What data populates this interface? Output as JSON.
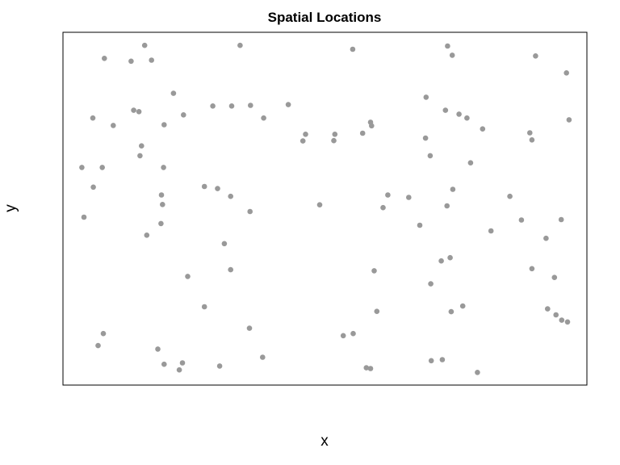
{
  "chart_data": {
    "type": "scatter",
    "title": "Spatial Locations",
    "xlabel": "x",
    "ylabel": "y",
    "xlim": [
      0,
      1
    ],
    "ylim": [
      0,
      1
    ],
    "grid": false,
    "axis_ticks_shown": false,
    "point_color": "#999999",
    "points": [
      [
        0.156,
        0.963
      ],
      [
        0.338,
        0.963
      ],
      [
        0.734,
        0.961
      ],
      [
        0.553,
        0.952
      ],
      [
        0.743,
        0.935
      ],
      [
        0.902,
        0.933
      ],
      [
        0.079,
        0.926
      ],
      [
        0.13,
        0.918
      ],
      [
        0.169,
        0.921
      ],
      [
        0.961,
        0.885
      ],
      [
        0.211,
        0.827
      ],
      [
        0.693,
        0.816
      ],
      [
        0.43,
        0.795
      ],
      [
        0.322,
        0.791
      ],
      [
        0.286,
        0.791
      ],
      [
        0.358,
        0.793
      ],
      [
        0.145,
        0.775
      ],
      [
        0.135,
        0.779
      ],
      [
        0.73,
        0.779
      ],
      [
        0.23,
        0.766
      ],
      [
        0.756,
        0.768
      ],
      [
        0.057,
        0.757
      ],
      [
        0.383,
        0.757
      ],
      [
        0.771,
        0.757
      ],
      [
        0.193,
        0.738
      ],
      [
        0.096,
        0.736
      ],
      [
        0.587,
        0.745
      ],
      [
        0.589,
        0.735
      ],
      [
        0.801,
        0.726
      ],
      [
        0.966,
        0.752
      ],
      [
        0.572,
        0.714
      ],
      [
        0.891,
        0.715
      ],
      [
        0.463,
        0.711
      ],
      [
        0.519,
        0.711
      ],
      [
        0.692,
        0.7
      ],
      [
        0.458,
        0.692
      ],
      [
        0.517,
        0.693
      ],
      [
        0.895,
        0.695
      ],
      [
        0.15,
        0.678
      ],
      [
        0.147,
        0.65
      ],
      [
        0.701,
        0.65
      ],
      [
        0.778,
        0.63
      ],
      [
        0.036,
        0.617
      ],
      [
        0.075,
        0.617
      ],
      [
        0.192,
        0.617
      ],
      [
        0.058,
        0.561
      ],
      [
        0.27,
        0.563
      ],
      [
        0.295,
        0.557
      ],
      [
        0.744,
        0.555
      ],
      [
        0.188,
        0.539
      ],
      [
        0.32,
        0.535
      ],
      [
        0.62,
        0.539
      ],
      [
        0.66,
        0.532
      ],
      [
        0.853,
        0.535
      ],
      [
        0.49,
        0.511
      ],
      [
        0.733,
        0.508
      ],
      [
        0.19,
        0.512
      ],
      [
        0.611,
        0.503
      ],
      [
        0.357,
        0.492
      ],
      [
        0.04,
        0.476
      ],
      [
        0.875,
        0.468
      ],
      [
        0.951,
        0.469
      ],
      [
        0.187,
        0.458
      ],
      [
        0.681,
        0.453
      ],
      [
        0.817,
        0.437
      ],
      [
        0.16,
        0.425
      ],
      [
        0.922,
        0.416
      ],
      [
        0.308,
        0.401
      ],
      [
        0.722,
        0.352
      ],
      [
        0.739,
        0.361
      ],
      [
        0.32,
        0.327
      ],
      [
        0.594,
        0.324
      ],
      [
        0.895,
        0.33
      ],
      [
        0.238,
        0.308
      ],
      [
        0.938,
        0.305
      ],
      [
        0.702,
        0.287
      ],
      [
        0.27,
        0.222
      ],
      [
        0.763,
        0.224
      ],
      [
        0.599,
        0.209
      ],
      [
        0.741,
        0.208
      ],
      [
        0.925,
        0.216
      ],
      [
        0.941,
        0.199
      ],
      [
        0.952,
        0.184
      ],
      [
        0.963,
        0.179
      ],
      [
        0.356,
        0.161
      ],
      [
        0.554,
        0.146
      ],
      [
        0.535,
        0.14
      ],
      [
        0.077,
        0.146
      ],
      [
        0.067,
        0.112
      ],
      [
        0.181,
        0.102
      ],
      [
        0.381,
        0.079
      ],
      [
        0.703,
        0.069
      ],
      [
        0.724,
        0.072
      ],
      [
        0.193,
        0.059
      ],
      [
        0.228,
        0.063
      ],
      [
        0.299,
        0.054
      ],
      [
        0.579,
        0.049
      ],
      [
        0.587,
        0.047
      ],
      [
        0.222,
        0.043
      ],
      [
        0.791,
        0.036
      ]
    ]
  }
}
